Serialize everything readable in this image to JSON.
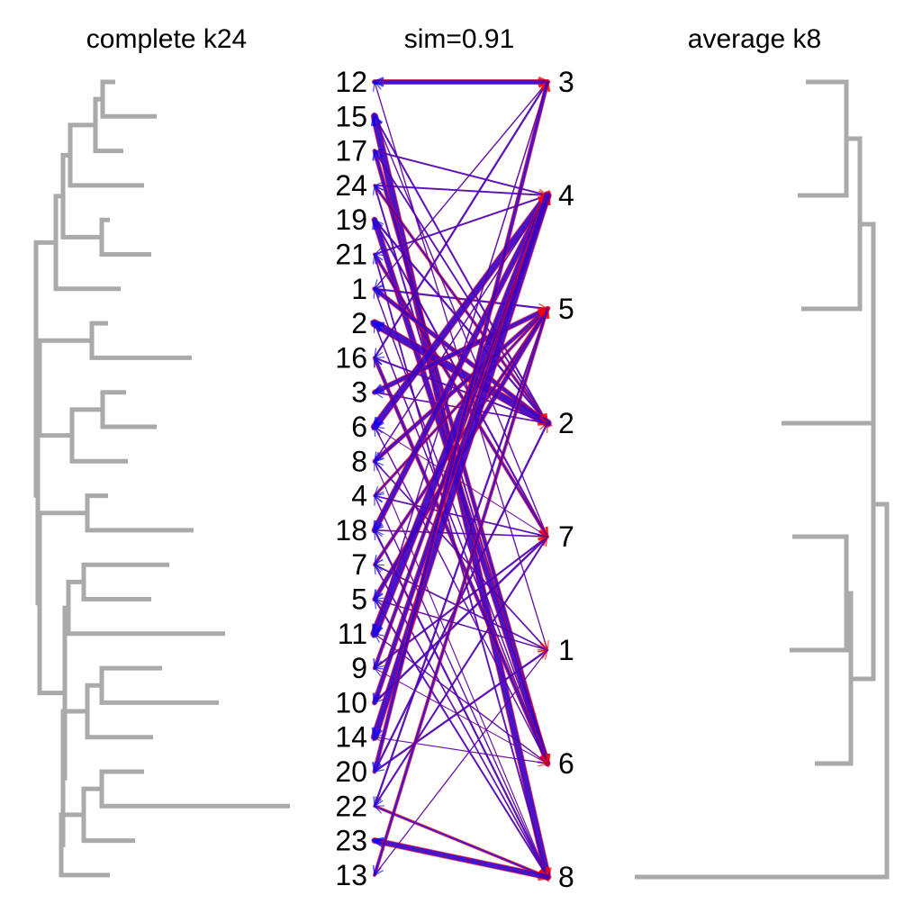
{
  "titles": {
    "left": "complete k24",
    "center": "sim=0.91",
    "right": "average k8"
  },
  "left_labels": [
    "12",
    "15",
    "17",
    "24",
    "19",
    "21",
    "1",
    "2",
    "16",
    "3",
    "6",
    "8",
    "4",
    "18",
    "7",
    "5",
    "11",
    "9",
    "10",
    "14",
    "20",
    "22",
    "23",
    "13"
  ],
  "right_labels": [
    "3",
    "4",
    "5",
    "2",
    "7",
    "1",
    "6",
    "8"
  ],
  "colors": {
    "dendrogram": "#aaaaaa",
    "red": "#ff0000",
    "blue": "#0000ff"
  },
  "mapping": {
    "1": 3,
    "2": 3,
    "3": 2,
    "4": 2,
    "5": 2,
    "6": 1,
    "7": 2,
    "8": 2,
    "9": 1,
    "10": 1,
    "11": 1,
    "12": 0,
    "13": 2,
    "14": 1,
    "15": 7,
    "16": 6,
    "17": 6,
    "18": 1,
    "19": 6,
    "20": 0,
    "21": 4,
    "22": 7,
    "23": 7,
    "24": 3
  }
}
